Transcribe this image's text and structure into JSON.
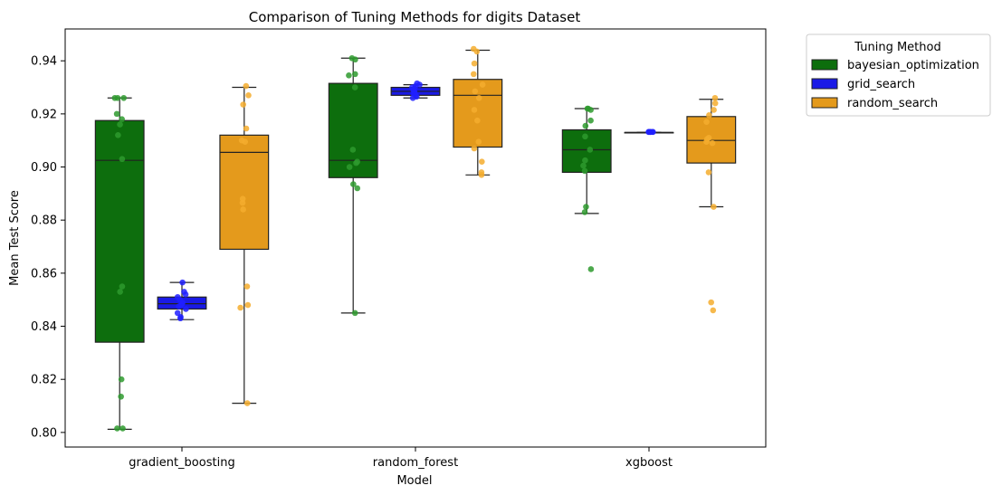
{
  "chart_data": {
    "type": "boxplot",
    "title": "Comparison of Tuning Methods for digits Dataset",
    "xlabel": "Model",
    "ylabel": "Mean Test Score",
    "categories": [
      "gradient_boosting",
      "random_forest",
      "xgboost"
    ],
    "ylim": [
      0.7945,
      0.952
    ],
    "yticks": [
      0.8,
      0.82,
      0.84,
      0.86,
      0.88,
      0.9,
      0.92,
      0.94
    ],
    "ytick_labels": [
      "0.80",
      "0.82",
      "0.84",
      "0.86",
      "0.88",
      "0.90",
      "0.92",
      "0.94"
    ],
    "legend": {
      "title": "Tuning Method",
      "placement": "outside-upper-right"
    },
    "series": [
      {
        "name": "bayesian_optimization",
        "color": "#0d6e0d",
        "point_color": "#2e9a2e",
        "boxes": [
          {
            "min": 0.8012,
            "q1": 0.834,
            "median": 0.9025,
            "q3": 0.9175,
            "max": 0.926,
            "points": [
              0.926,
              0.926,
              0.926,
              0.92,
              0.918,
              0.916,
              0.912,
              0.903,
              0.855,
              0.853,
              0.82,
              0.8135,
              0.8015,
              0.8015
            ]
          },
          {
            "min": 0.845,
            "q1": 0.896,
            "median": 0.9025,
            "q3": 0.9315,
            "max": 0.941,
            "points": [
              0.941,
              0.9405,
              0.935,
              0.9345,
              0.93,
              0.9065,
              0.902,
              0.9015,
              0.9,
              0.8935,
              0.892,
              0.845
            ]
          },
          {
            "min": 0.8825,
            "q1": 0.898,
            "median": 0.9065,
            "q3": 0.914,
            "max": 0.922,
            "points": [
              0.922,
              0.922,
              0.9215,
              0.9175,
              0.9155,
              0.9115,
              0.9065,
              0.9025,
              0.9005,
              0.8985,
              0.885,
              0.883,
              0.8615
            ]
          }
        ]
      },
      {
        "name": "grid_search",
        "color": "#1a1ae6",
        "point_color": "#2020ff",
        "boxes": [
          {
            "min": 0.8425,
            "q1": 0.8465,
            "median": 0.8485,
            "q3": 0.851,
            "max": 0.8565,
            "points": [
              0.8565,
              0.853,
              0.852,
              0.851,
              0.85,
              0.849,
              0.8485,
              0.848,
              0.8475,
              0.8465,
              0.845,
              0.8435,
              0.843
            ]
          },
          {
            "min": 0.926,
            "q1": 0.927,
            "median": 0.9285,
            "q3": 0.93,
            "max": 0.931,
            "points": [
              0.9315,
              0.931,
              0.9305,
              0.93,
              0.9295,
              0.929,
              0.9285,
              0.928,
              0.9275,
              0.927,
              0.9265,
              0.926
            ]
          },
          {
            "min": 0.913,
            "q1": 0.913,
            "median": 0.913,
            "q3": 0.913,
            "max": 0.913,
            "points": [
              0.9132,
              0.9132,
              0.9132,
              0.9132,
              0.9132,
              0.9132,
              0.9132
            ]
          }
        ]
      },
      {
        "name": "random_search",
        "color": "#e49a1c",
        "point_color": "#f5ad2e",
        "boxes": [
          {
            "min": 0.811,
            "q1": 0.869,
            "median": 0.9055,
            "q3": 0.912,
            "max": 0.93,
            "points": [
              0.9305,
              0.927,
              0.9235,
              0.9145,
              0.91,
              0.9095,
              0.888,
              0.8865,
              0.884,
              0.855,
              0.848,
              0.847,
              0.811
            ]
          },
          {
            "min": 0.897,
            "q1": 0.9075,
            "median": 0.927,
            "q3": 0.933,
            "max": 0.944,
            "points": [
              0.9445,
              0.9435,
              0.939,
              0.935,
              0.931,
              0.9285,
              0.926,
              0.9215,
              0.9175,
              0.9095,
              0.907,
              0.902,
              0.898,
              0.897
            ]
          },
          {
            "min": 0.885,
            "q1": 0.9015,
            "median": 0.91,
            "q3": 0.919,
            "max": 0.9255,
            "points": [
              0.926,
              0.924,
              0.9215,
              0.9195,
              0.917,
              0.911,
              0.9105,
              0.9095,
              0.909,
              0.898,
              0.885,
              0.849,
              0.846
            ]
          }
        ]
      }
    ]
  }
}
